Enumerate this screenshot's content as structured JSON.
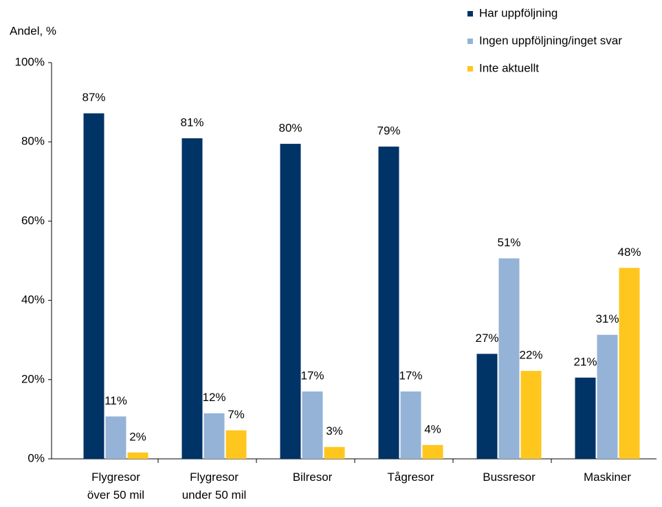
{
  "chart_data": {
    "type": "bar",
    "y_label": "Andel, %",
    "categories": [
      "Flygresor\növer 50 mil",
      "Flygresor\nunder 50 mil",
      "Bilresor",
      "Tågresor",
      "Bussresor",
      "Maskiner"
    ],
    "series": [
      {
        "name": "Har uppföljning",
        "color": "#003366",
        "values": [
          87.2,
          80.9,
          79.5,
          78.8,
          26.5,
          20.5
        ],
        "value_labels": [
          "87%",
          "81%",
          "80%",
          "79%",
          "27%",
          "21%"
        ]
      },
      {
        "name": "Ingen uppföljning/inget svar",
        "color": "#95B3D7",
        "values": [
          10.7,
          11.5,
          17,
          17,
          50.6,
          31.3
        ],
        "value_labels": [
          "11%",
          "12%",
          "17%",
          "17%",
          "51%",
          "31%"
        ]
      },
      {
        "name": "Inte aktuellt",
        "color": "#FFC61E",
        "values": [
          1.6,
          7.2,
          3,
          3.5,
          22.2,
          48.2
        ],
        "value_labels": [
          "2%",
          "7%",
          "3%",
          "4%",
          "22%",
          "48%"
        ]
      }
    ],
    "ylim": [
      0,
      100
    ],
    "yticks": [
      {
        "value": 0,
        "label": "0%"
      },
      {
        "value": 20,
        "label": "20%"
      },
      {
        "value": 40,
        "label": "40%"
      },
      {
        "value": 60,
        "label": "60%"
      },
      {
        "value": 80,
        "label": "80%"
      },
      {
        "value": 100,
        "label": "100%"
      }
    ],
    "legend": "top-right",
    "grid": false
  }
}
